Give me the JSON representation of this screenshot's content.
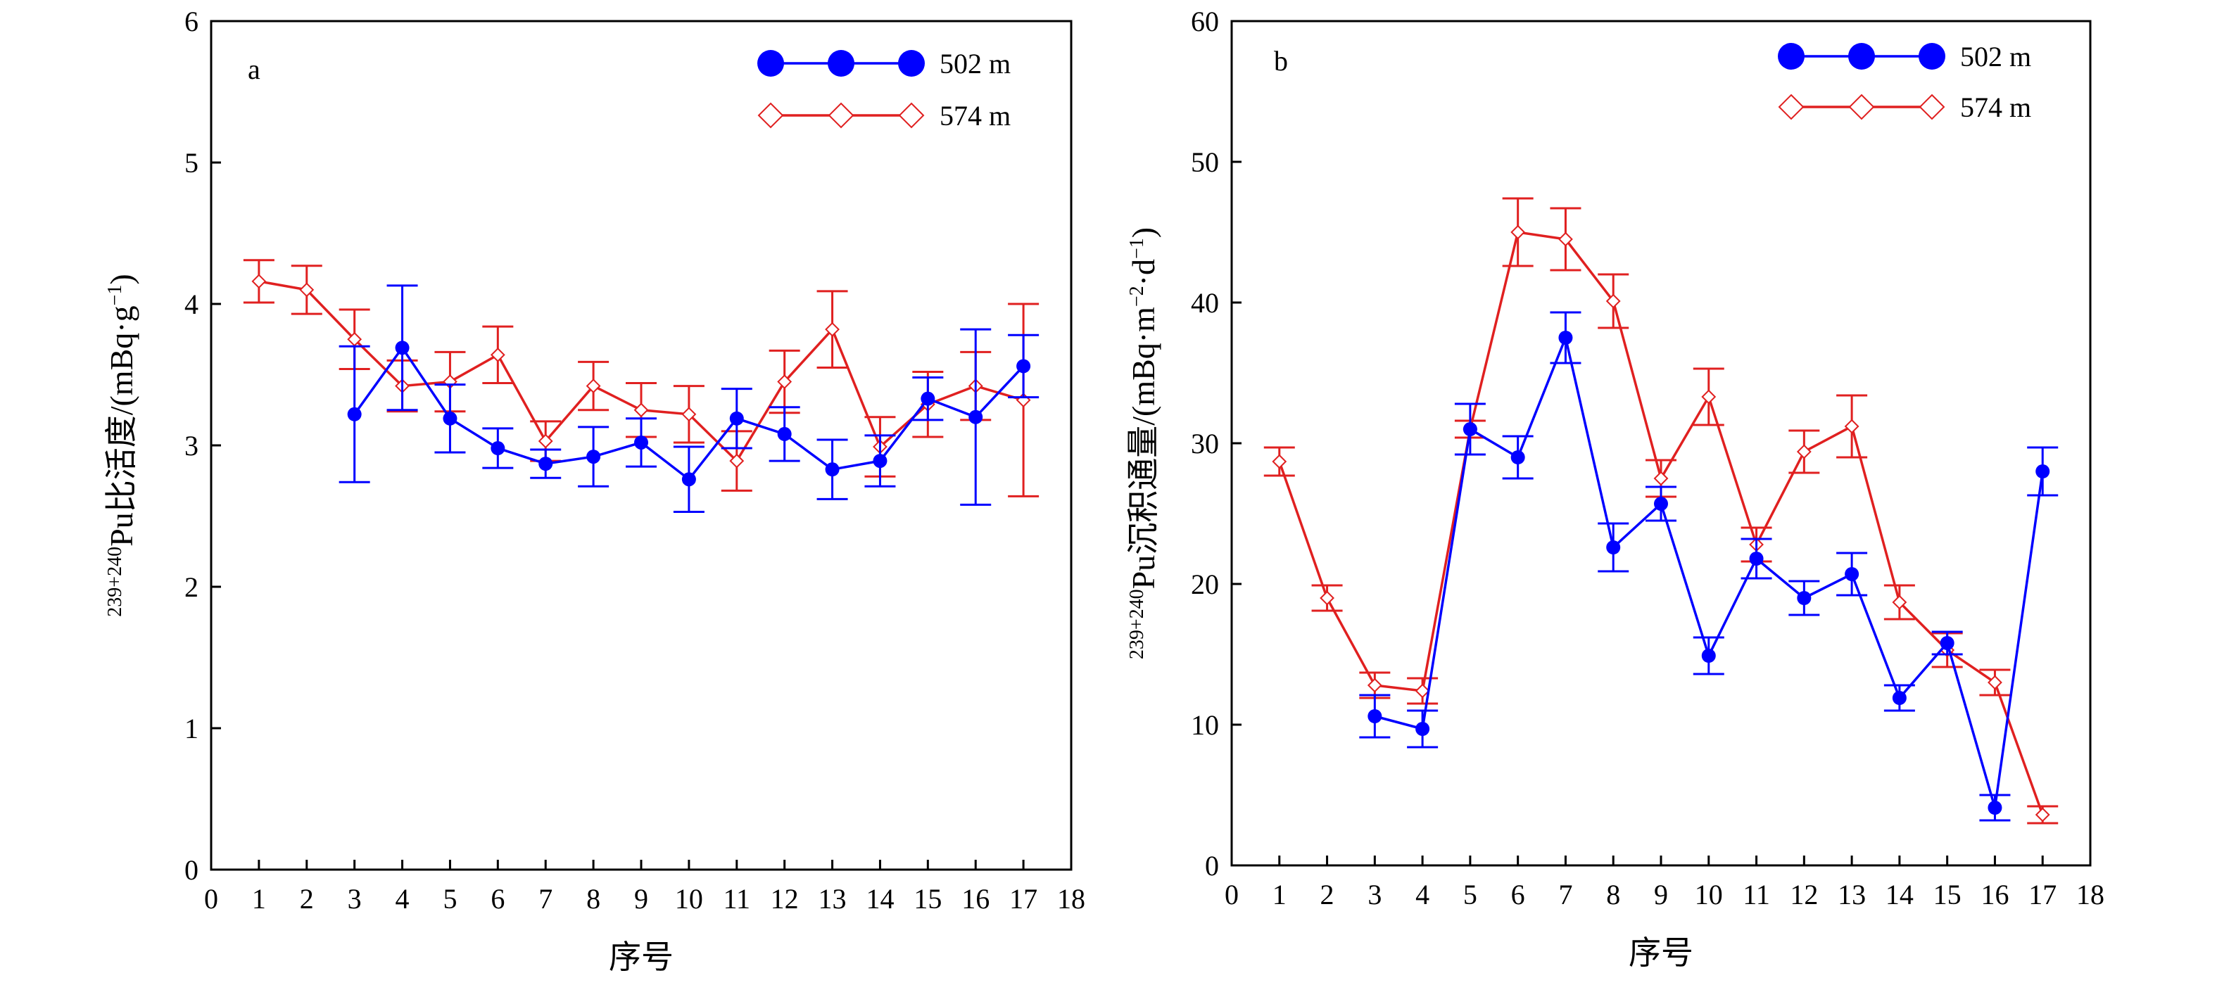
{
  "chart_data": [
    {
      "type": "line",
      "panel_label": "a",
      "xlabel": "序号",
      "ylabel": {
        "superscript": "239+240",
        "main": "Pu比活度/(mBq·g",
        "unit_superscript": "−1",
        "suffix": ")"
      },
      "xlim": [
        0,
        18
      ],
      "ylim": [
        0,
        6
      ],
      "xticks": [
        0,
        1,
        2,
        3,
        4,
        5,
        6,
        7,
        8,
        9,
        10,
        11,
        12,
        13,
        14,
        15,
        16,
        17,
        18
      ],
      "yticks": [
        0,
        1,
        2,
        3,
        4,
        5,
        6
      ],
      "legend_position": "top-right",
      "series": [
        {
          "name": "502 m",
          "color": "#0000ff",
          "marker": "filled-circle",
          "x": [
            3,
            4,
            5,
            6,
            7,
            8,
            9,
            10,
            11,
            12,
            13,
            14,
            15,
            16,
            17
          ],
          "y": [
            3.22,
            3.69,
            3.19,
            2.98,
            2.87,
            2.92,
            3.02,
            2.76,
            3.19,
            3.08,
            2.83,
            2.89,
            3.33,
            3.2,
            3.56
          ],
          "err": [
            0.48,
            0.44,
            0.24,
            0.14,
            0.1,
            0.21,
            0.17,
            0.23,
            0.21,
            0.19,
            0.21,
            0.18,
            0.15,
            0.62,
            0.22
          ]
        },
        {
          "name": "574 m",
          "color": "#e02020",
          "marker": "open-diamond",
          "x": [
            1,
            2,
            3,
            4,
            5,
            6,
            7,
            8,
            9,
            10,
            11,
            12,
            13,
            14,
            15,
            16,
            17
          ],
          "y": [
            4.16,
            4.1,
            3.75,
            3.42,
            3.45,
            3.64,
            3.03,
            3.42,
            3.25,
            3.22,
            2.89,
            3.45,
            3.82,
            2.99,
            3.29,
            3.42,
            3.32
          ],
          "err": [
            0.15,
            0.17,
            0.21,
            0.18,
            0.21,
            0.2,
            0.14,
            0.17,
            0.19,
            0.2,
            0.21,
            0.22,
            0.27,
            0.21,
            0.23,
            0.24,
            0.68
          ]
        }
      ]
    },
    {
      "type": "line",
      "panel_label": "b",
      "xlabel": "序号",
      "ylabel": {
        "superscript": "239+240",
        "main": "Pu沉积通量/(mBq·m",
        "unit_superscript": "−2",
        "middle": "·d",
        "unit_superscript_2": "−1",
        "suffix": ")"
      },
      "xlim": [
        0,
        18
      ],
      "ylim": [
        0,
        60
      ],
      "xticks": [
        0,
        1,
        2,
        3,
        4,
        5,
        6,
        7,
        8,
        9,
        10,
        11,
        12,
        13,
        14,
        15,
        16,
        17,
        18
      ],
      "yticks": [
        0,
        10,
        20,
        30,
        40,
        50,
        60
      ],
      "legend_position": "top-right",
      "series": [
        {
          "name": "502 m",
          "color": "#0000ff",
          "marker": "filled-circle",
          "x": [
            3,
            4,
            5,
            6,
            7,
            8,
            9,
            10,
            11,
            12,
            13,
            14,
            15,
            16,
            17
          ],
          "y": [
            10.6,
            9.7,
            31.0,
            29.0,
            37.5,
            22.6,
            25.7,
            14.9,
            21.8,
            19.0,
            20.7,
            11.9,
            15.8,
            4.1,
            28.0
          ],
          "err": [
            1.5,
            1.3,
            1.8,
            1.5,
            1.8,
            1.7,
            1.2,
            1.3,
            1.4,
            1.2,
            1.5,
            0.9,
            0.8,
            0.9,
            1.7
          ]
        },
        {
          "name": "574 m",
          "color": "#e02020",
          "marker": "open-diamond",
          "x": [
            1,
            2,
            3,
            4,
            5,
            6,
            7,
            8,
            9,
            10,
            11,
            12,
            13,
            14,
            15,
            16,
            17
          ],
          "y": [
            28.7,
            19.0,
            12.8,
            12.4,
            31.0,
            45.0,
            44.5,
            40.1,
            27.5,
            33.3,
            22.8,
            29.4,
            31.2,
            18.7,
            15.3,
            13.0,
            3.6
          ],
          "err": [
            1.0,
            0.9,
            0.9,
            0.9,
            0.6,
            2.4,
            2.2,
            1.9,
            1.3,
            2.0,
            1.2,
            1.5,
            2.2,
            1.2,
            1.2,
            0.9,
            0.6
          ]
        }
      ]
    }
  ]
}
